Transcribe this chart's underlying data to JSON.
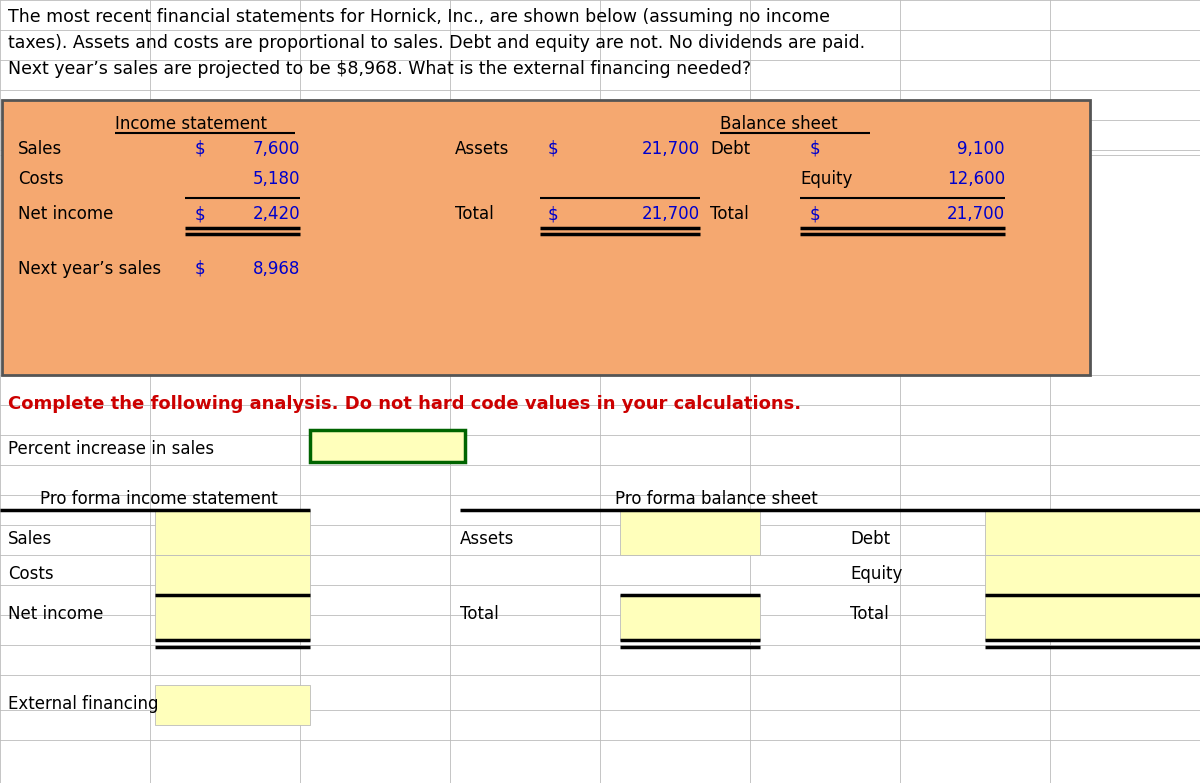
{
  "title_line1": "The most recent financial statements for Hornick, Inc., are shown below (assuming no income",
  "title_line2": "taxes). Assets and costs are proportional to sales. Debt and equity are not. No dividends are paid.",
  "title_line3": "Next year’s sales are projected to be $8,968. What is the external financing needed?",
  "orange_bg": "#F5A870",
  "yellow_bg": "#FFFFBB",
  "green_border": "#006400",
  "white_bg": "#FFFFFF",
  "grid_line": "#BBBBBB",
  "black": "#000000",
  "blue": "#0000CC",
  "red": "#CC0000",
  "income_header": "Income statement",
  "sales_label": "Sales",
  "costs_label": "Costs",
  "net_income_label": "Net income",
  "next_sales_label": "Next year’s sales",
  "dollar_sign": "$",
  "sales_val": "7,600",
  "costs_val": "5,180",
  "net_income_val": "2,420",
  "next_sales_val": "8,968",
  "balance_header": "Balance sheet",
  "assets_label": "Assets",
  "total_label": "Total",
  "debt_label": "Debt",
  "equity_label": "Equity",
  "assets_val": "21,700",
  "total_assets_val": "21,700",
  "debt_val": "9,100",
  "equity_val": "12,600",
  "total_liab_val": "21,700",
  "complete_text": "Complete the following analysis. Do not hard code values in your calculations.",
  "pct_label": "Percent increase in sales",
  "proforma_is_header": "Pro forma income statement",
  "proforma_bs_header": "Pro forma balance sheet",
  "proforma_sales": "Sales",
  "proforma_costs": "Costs",
  "proforma_net": "Net income",
  "proforma_assets": "Assets",
  "proforma_total": "Total",
  "proforma_debt": "Debt",
  "proforma_equity": "Equity",
  "proforma_total2": "Total",
  "ext_fin_label": "External financing",
  "fig_w": 1200,
  "fig_h": 783
}
